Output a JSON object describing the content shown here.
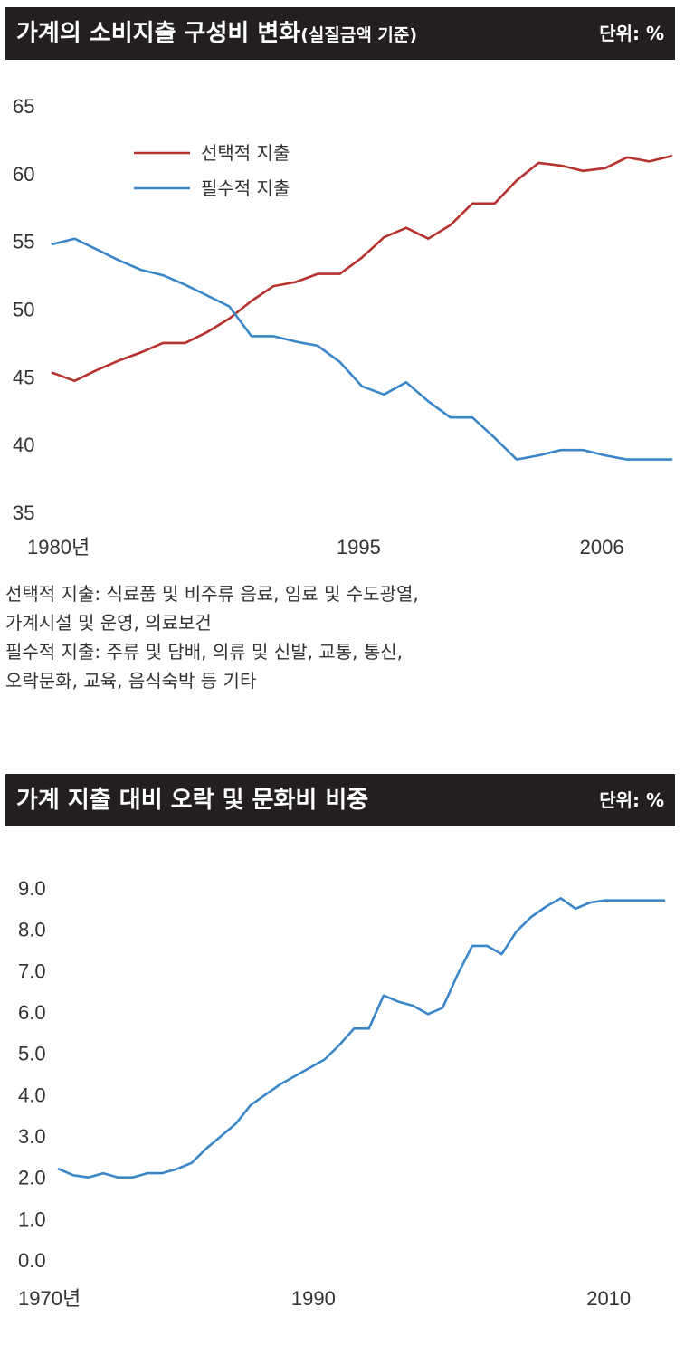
{
  "chart1": {
    "title": "가계의 소비지출 구성비 변화",
    "title_sub": "(실질금액 기준)",
    "unit": "단위: %",
    "legend": [
      "선택적 지출",
      "필수적 지출"
    ],
    "notes": [
      "선택적 지출: 식료품 및 비주류 음료, 임료 및 수도광열,",
      "가계시설 및 운영, 의료보건",
      "필수적 지출: 주류 및 담배, 의류 및 신발, 교통, 통신,",
      "오락문화, 교육, 음식숙박 등 기타"
    ]
  },
  "chart2": {
    "title": "가계 지출 대비 오락 및 문화비 비중",
    "unit": "단위: %"
  },
  "chart_data": [
    {
      "type": "line",
      "title": "가계의 소비지출 구성비 변화(실질금액 기준)",
      "unit": "%",
      "ylim": [
        35,
        65
      ],
      "yticks": [
        "65",
        "60",
        "55",
        "50",
        "45",
        "40",
        "35"
      ],
      "xlim": [
        1980,
        2008
      ],
      "xticks": [
        {
          "x": 1980,
          "label": "1980년"
        },
        {
          "x": 1995,
          "label": "1995"
        },
        {
          "x": 2006,
          "label": "2006"
        }
      ],
      "grid": false,
      "legend": "top-left",
      "colors": [
        "#b5322e",
        "#3a86c8"
      ],
      "x": [
        1980,
        1981,
        1982,
        1983,
        1984,
        1985,
        1986,
        1987,
        1988,
        1989,
        1990,
        1991,
        1992,
        1993,
        1994,
        1995,
        1996,
        1997,
        1998,
        1999,
        2000,
        2001,
        2002,
        2003,
        2004,
        2005,
        2006,
        2007,
        2008
      ],
      "series": [
        {
          "name": "선택적 지출",
          "values": [
            45.3,
            44.7,
            45.5,
            46.2,
            46.8,
            47.5,
            47.5,
            48.3,
            49.3,
            50.6,
            51.7,
            52.0,
            52.6,
            52.6,
            53.8,
            55.3,
            56.0,
            55.2,
            56.2,
            57.8,
            57.8,
            59.5,
            60.8,
            60.6,
            60.2,
            60.4,
            61.2,
            60.9,
            61.3
          ]
        },
        {
          "name": "필수적 지출",
          "values": [
            54.8,
            55.2,
            54.4,
            53.6,
            52.9,
            52.5,
            51.8,
            51.0,
            50.2,
            48.0,
            48.0,
            47.6,
            47.3,
            46.1,
            44.3,
            43.7,
            44.6,
            43.2,
            42.0,
            42.0,
            40.5,
            38.9,
            39.2,
            39.6,
            39.6,
            39.2,
            38.9,
            38.9,
            38.9
          ]
        }
      ]
    },
    {
      "type": "line",
      "title": "가계 지출 대비 오락 및 문화비 비중",
      "unit": "%",
      "ylim": [
        0,
        9
      ],
      "yticks": [
        "9.0",
        "8.0",
        "7.0",
        "6.0",
        "5.0",
        "4.0",
        "3.0",
        "2.0",
        "1.0",
        "0.0"
      ],
      "xlim": [
        1970,
        2011
      ],
      "xticks": [
        {
          "x": 1970,
          "label": "1970년"
        },
        {
          "x": 1990,
          "label": "1990"
        },
        {
          "x": 2010,
          "label": "2010"
        }
      ],
      "grid": false,
      "colors": [
        "#3a86c8"
      ],
      "x": [
        1970,
        1971,
        1972,
        1973,
        1974,
        1975,
        1976,
        1977,
        1978,
        1979,
        1980,
        1981,
        1982,
        1983,
        1984,
        1985,
        1986,
        1987,
        1988,
        1989,
        1990,
        1991,
        1992,
        1993,
        1994,
        1995,
        1996,
        1997,
        1998,
        1999,
        2000,
        2001,
        2002,
        2003,
        2004,
        2005,
        2006,
        2007,
        2008,
        2009,
        2010,
        2011
      ],
      "series": [
        {
          "name": "",
          "values": [
            2.2,
            2.05,
            2.0,
            2.1,
            2.0,
            2.0,
            2.1,
            2.1,
            2.2,
            2.35,
            2.7,
            3.0,
            3.3,
            3.75,
            4.0,
            4.25,
            4.45,
            4.65,
            4.85,
            5.2,
            5.6,
            5.6,
            6.4,
            6.25,
            6.15,
            5.95,
            6.1,
            6.9,
            7.6,
            7.6,
            7.4,
            7.95,
            8.3,
            8.55,
            8.75,
            8.5,
            8.65,
            8.7,
            8.7,
            8.7,
            8.7,
            8.7
          ]
        }
      ]
    }
  ]
}
